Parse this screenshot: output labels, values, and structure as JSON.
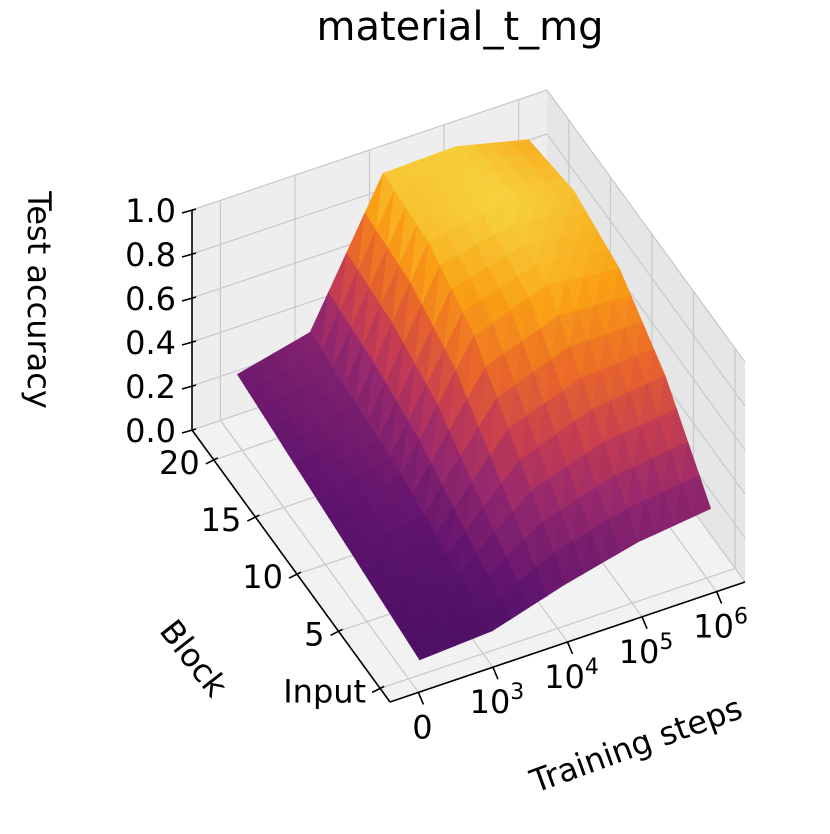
{
  "chart_data": {
    "type": "surface",
    "title": "material_t_mg",
    "xlabel": "Training steps",
    "ylabel": "Block",
    "zlabel": "Test accuracy",
    "colormap": "inferno",
    "x_tick_labels": [
      {
        "base": "0",
        "exp": ""
      },
      {
        "base": "10",
        "exp": "3"
      },
      {
        "base": "10",
        "exp": "4"
      },
      {
        "base": "10",
        "exp": "5"
      },
      {
        "base": "10",
        "exp": "6"
      }
    ],
    "y_tick_labels": [
      "Input",
      "5",
      "10",
      "15",
      "20"
    ],
    "z_tick_labels": [
      "0.0",
      "0.2",
      "0.4",
      "0.6",
      "0.8",
      "1.0"
    ],
    "zlim": [
      0,
      1
    ],
    "x": [
      "0",
      "10^3",
      "10^4",
      "10^5",
      "10^6"
    ],
    "y": [
      "Input",
      "5",
      "10",
      "15",
      "20"
    ],
    "z": [
      [
        0.1,
        0.12,
        0.22,
        0.3,
        0.34
      ],
      [
        0.14,
        0.18,
        0.5,
        0.62,
        0.66
      ],
      [
        0.18,
        0.26,
        0.78,
        0.9,
        0.86
      ],
      [
        0.22,
        0.3,
        0.92,
        0.98,
        0.93
      ],
      [
        0.26,
        0.34,
        0.95,
        0.96,
        0.88
      ]
    ]
  }
}
